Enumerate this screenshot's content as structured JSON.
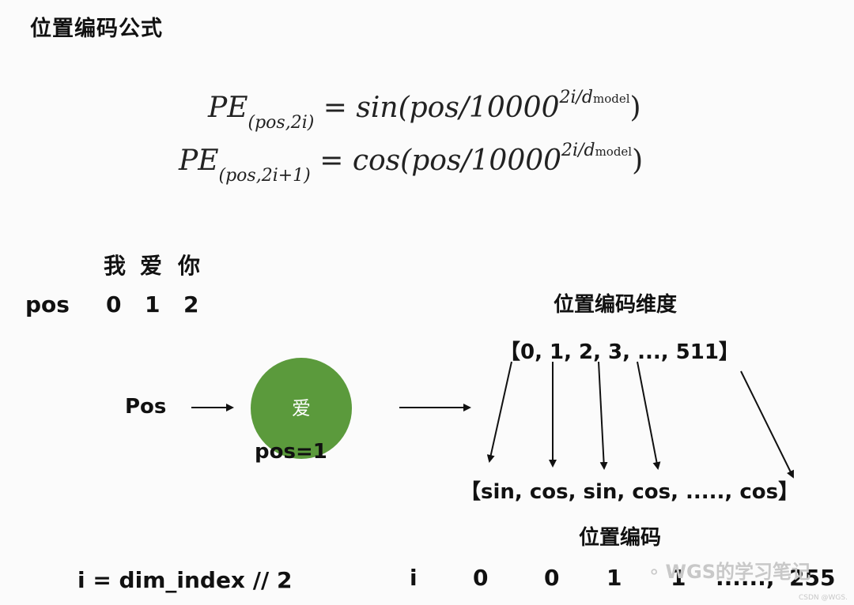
{
  "title": "位置编码公式",
  "formula": {
    "line1": {
      "lhs": "PE",
      "sub": "(pos,2i)",
      "eq": "=",
      "fn": "sin(pos/10000",
      "sup": "2i/d",
      "supsub": "model",
      "close": ")"
    },
    "line2": {
      "lhs": "PE",
      "sub": "(pos,2i+1)",
      "eq": "=",
      "fn": "cos(pos/10000",
      "sup": "2i/d",
      "supsub": "model",
      "close": ")"
    }
  },
  "sentence": {
    "words": [
      "我",
      "爱",
      "你"
    ],
    "pos_label": "pos",
    "positions": [
      "0",
      "1",
      "2"
    ]
  },
  "flow": {
    "input_label": "Pos",
    "node_label": "爱",
    "node_pos": "pos=1"
  },
  "dims": {
    "title": "位置编码维度",
    "values": "【0, 1, 2, 3, ..., 511】"
  },
  "encoding": {
    "values": "【sin, cos, sin, cos, ....., cos】",
    "label": "位置编码"
  },
  "index": {
    "formula": "i = dim_index  //  2",
    "i_label": "i",
    "values": [
      "0",
      "0",
      "1",
      "1",
      "......,",
      "255"
    ]
  },
  "watermark": {
    "text": "WGS的学习笔记",
    "small": "CSDN @WGS."
  }
}
